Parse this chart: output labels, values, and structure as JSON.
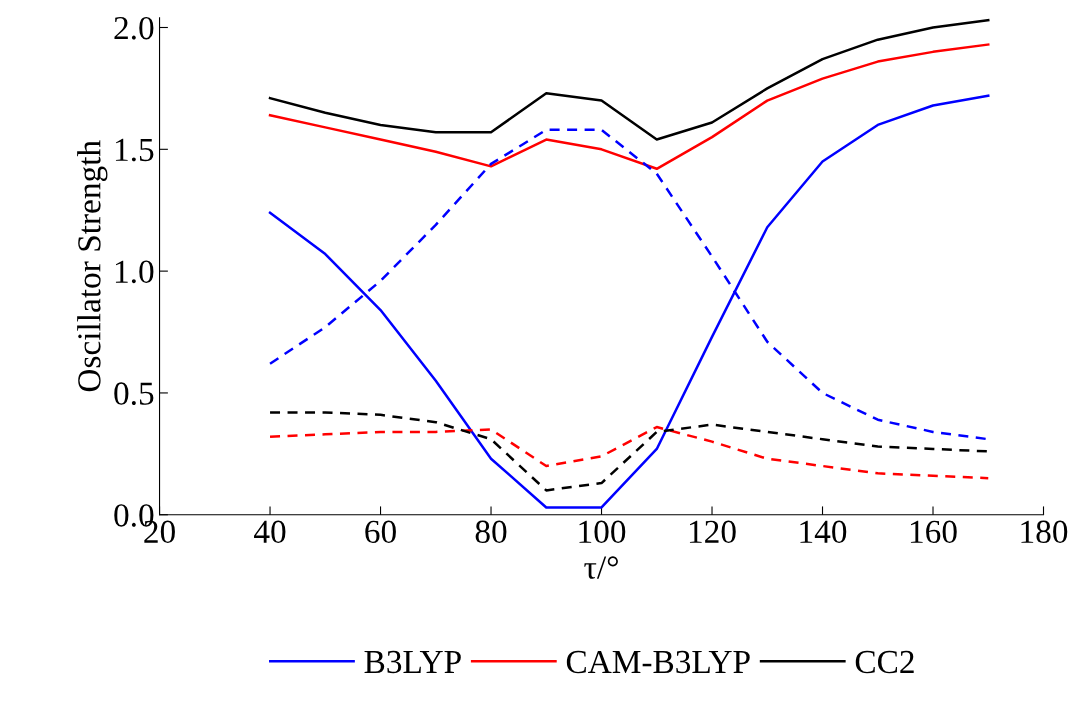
{
  "chart_data": {
    "type": "line",
    "xlabel": "τ/°",
    "ylabel": "Oscillator Strength",
    "x": [
      40,
      50,
      60,
      70,
      80,
      90,
      100,
      110,
      120,
      130,
      140,
      150,
      160,
      170
    ],
    "xlim": [
      20,
      180
    ],
    "xticks": [
      20,
      40,
      60,
      80,
      100,
      120,
      140,
      160,
      180
    ],
    "ylim": [
      0,
      2.04
    ],
    "yticks": [
      {
        "value": 0,
        "label": "0.0"
      },
      {
        "value": 0.5,
        "label": "0.5"
      },
      {
        "value": 1,
        "label": "1.0"
      },
      {
        "value": 1.5,
        "label": "1.5"
      },
      {
        "value": 2,
        "label": "2.0"
      }
    ],
    "grid": false,
    "legend": "bottom",
    "series": [
      {
        "name": "B3LYP",
        "color": "#0000ff",
        "line_style": "solid",
        "values": [
          1.24,
          1.07,
          0.84,
          0.55,
          0.23,
          0.03,
          0.03,
          0.27,
          0.73,
          1.18,
          1.45,
          1.6,
          1.68,
          1.72
        ]
      },
      {
        "name": "CAM-B3LYP",
        "color": "#ff0000",
        "line_style": "solid",
        "values": [
          1.64,
          1.59,
          1.54,
          1.49,
          1.43,
          1.54,
          1.5,
          1.42,
          1.55,
          1.7,
          1.79,
          1.86,
          1.9,
          1.93
        ]
      },
      {
        "name": "CC2",
        "color": "#000000",
        "line_style": "solid",
        "values": [
          1.71,
          1.65,
          1.6,
          1.57,
          1.57,
          1.73,
          1.7,
          1.54,
          1.61,
          1.75,
          1.87,
          1.95,
          2.0,
          2.03
        ]
      },
      {
        "color": "#0000ff",
        "line_style": "dashed",
        "values": [
          0.62,
          0.77,
          0.96,
          1.19,
          1.44,
          1.58,
          1.58,
          1.4,
          1.06,
          0.71,
          0.5,
          0.39,
          0.34,
          0.31
        ]
      },
      {
        "color": "#ff0000",
        "line_style": "dashed",
        "values": [
          0.32,
          0.33,
          0.34,
          0.34,
          0.35,
          0.2,
          0.24,
          0.36,
          0.3,
          0.23,
          0.2,
          0.17,
          0.16,
          0.15
        ]
      },
      {
        "color": "#000000",
        "line_style": "dashed",
        "values": [
          0.42,
          0.42,
          0.41,
          0.38,
          0.31,
          0.1,
          0.13,
          0.34,
          0.37,
          0.34,
          0.31,
          0.28,
          0.27,
          0.26
        ]
      }
    ]
  }
}
